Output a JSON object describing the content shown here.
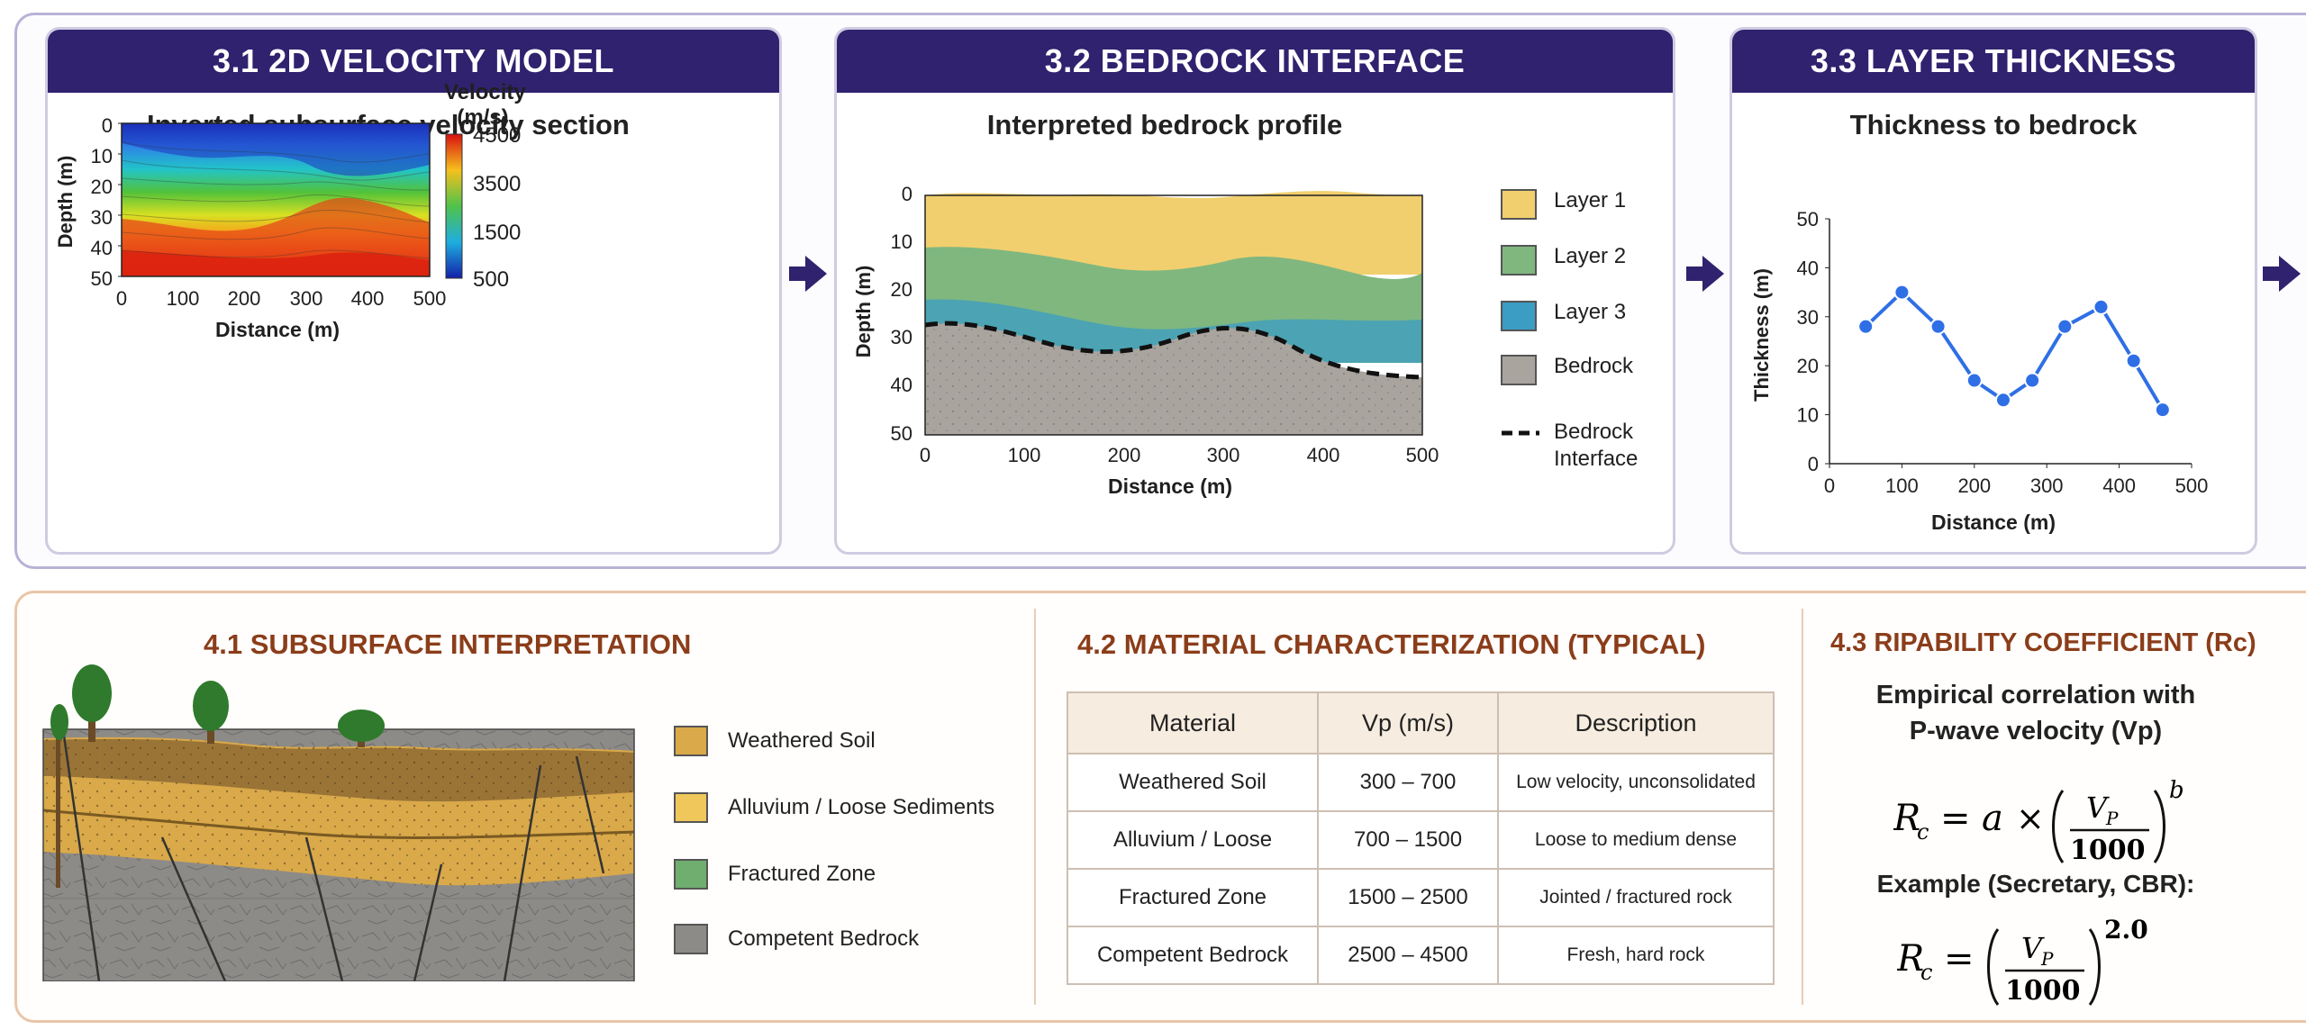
{
  "top": {
    "panel1": {
      "title": "3.1 2D VELOCITY MODEL",
      "subtitle": "Inverted subsurface velocity section",
      "colorbar_title_1": "Velocity",
      "colorbar_title_2": "(m/s)",
      "colorbar_ticks": [
        "4500",
        "3500",
        "1500",
        "500"
      ],
      "y_label": "Depth (m)",
      "x_label": "Distance (m)",
      "y_ticks": [
        "0",
        "10",
        "20",
        "30",
        "40",
        "50"
      ],
      "x_ticks": [
        "0",
        "100",
        "200",
        "300",
        "400",
        "500"
      ]
    },
    "panel2": {
      "title": "3.2 BEDROCK INTERFACE",
      "subtitle": "Interpreted bedrock profile",
      "y_label": "Depth (m)",
      "x_label": "Distance (m)",
      "y_ticks": [
        "0",
        "10",
        "20",
        "30",
        "40",
        "50"
      ],
      "x_ticks": [
        "0",
        "100",
        "200",
        "300",
        "400",
        "500"
      ],
      "legend": [
        "Layer 1",
        "Layer 2",
        "Layer 3",
        "Bedrock"
      ],
      "legend_interface_1": "Bedrock",
      "legend_interface_2": "Interface"
    },
    "panel3": {
      "title": "3.3 LAYER THICKNESS",
      "subtitle": "Thickness to bedrock",
      "y_label": "Thickness (m)",
      "x_label": "Distance (m)"
    }
  },
  "chart_data": {
    "type": "line",
    "title": "",
    "xlabel": "Distance (m)",
    "ylabel": "Thickness (m)",
    "x": [
      50,
      100,
      150,
      200,
      240,
      280,
      325,
      375,
      420,
      460
    ],
    "series": [
      {
        "values": [
          28,
          35,
          28,
          17,
          13,
          17,
          28,
          32,
          21,
          11
        ]
      }
    ],
    "xlim": [
      0,
      500
    ],
    "ylim": [
      0,
      50
    ],
    "x_ticks": [
      "0",
      "100",
      "200",
      "300",
      "400",
      "500"
    ],
    "y_ticks": [
      "0",
      "10",
      "20",
      "30",
      "40",
      "50"
    ],
    "line_color": "#2f6fe6"
  },
  "bottom": {
    "interp": {
      "title": "4.1 SUBSURFACE INTERPRETATION",
      "legend": [
        "Weathered Soil",
        "Alluvium / Loose Sediments",
        "Fractured Zone",
        "Competent Bedrock"
      ]
    },
    "material": {
      "title": "4.2 MATERIAL CHARACTERIZATION (TYPICAL)",
      "headers": [
        "Material",
        "Vp (m/s)",
        "Description"
      ],
      "rows": [
        [
          "Weathered Soil",
          "300 – 700",
          "Low velocity, unconsolidated"
        ],
        [
          "Alluvium / Loose",
          "700 – 1500",
          "Loose to medium dense"
        ],
        [
          "Fractured Zone",
          "1500 – 2500",
          "Jointed / fractured rock"
        ],
        [
          "Competent Bedrock",
          "2500 – 4500",
          "Fresh, hard rock"
        ]
      ]
    },
    "rippability": {
      "title": "4.3 RIPABILITY COEFFICIENT (Rc)",
      "line1": "Empirical correlation with",
      "line2": "P-wave velocity (Vp)",
      "example": "Example (Secretary, CBR):",
      "exponent": "2.0"
    }
  },
  "colors": {
    "header": "#30226e",
    "accent_bottom": "#8b3d1a",
    "layer1": "#f1cf6e",
    "layer2": "#7fb77f",
    "layer3": "#3b9cc4",
    "bedrock": "#a9a49e"
  }
}
